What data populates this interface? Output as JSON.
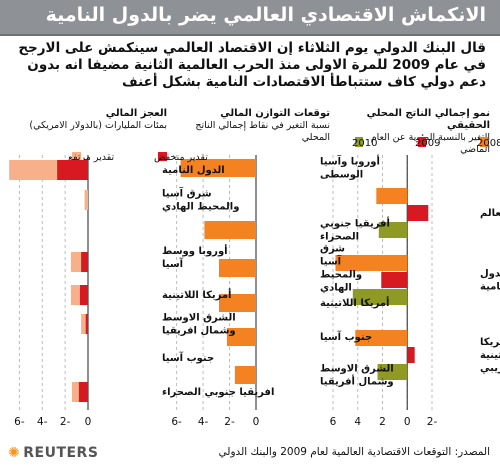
{
  "header": {
    "title": "الانكماش الاقتصادي العالمي يضر بالدول النامية",
    "intro": "قال البنك الدولي يوم الثلاثاء إن الاقتصاد العالمي سينكمش على الارجح في عام 2009 للمرة الاولى منذ الحرب العالمية الثانية مضيفا انه بدون دعم دولي كاف ستتباطأ الاقتصادات النامية بشكل أعنف"
  },
  "colors": {
    "orange": "#f58220",
    "red": "#d71921",
    "olive": "#8f9a24",
    "peach": "#f7b08a",
    "grid": "#bcbcbc",
    "axis": "#444444"
  },
  "panels": {
    "gdp": {
      "title": "نمو إجمالي الناتج المحلي الحقيقي",
      "subtitle": "التغير بالنسبة المئوية عن العام الماضي",
      "legend": [
        "2010",
        "2009",
        "2008"
      ]
    },
    "balance": {
      "title": "توقعات التوازن المالي",
      "subtitle": "نسبة التغير في نقاط إجمالي الناتج المحلي"
    },
    "deficit": {
      "title": "العجز المالي",
      "subtitle": "بمئات المليارات (بالدولار الامريكي)",
      "legend": [
        "تقدير مرتفع",
        "تقدير منخفض"
      ]
    }
  },
  "chart_data": [
    {
      "type": "bar",
      "title": "نمو إجمالي الناتج المحلي الحقيقي",
      "subtitle": "التغير بالنسبة المئوية عن العام الماضي",
      "categories": [
        "العالم",
        "الدول النامية",
        "أمريكا اللاتينية والكاريبي"
      ],
      "series": [
        {
          "name": "2008",
          "color": "#f58220",
          "values": [
            2.5,
            5.8,
            4.2
          ]
        },
        {
          "name": "2009",
          "color": "#d71921",
          "values": [
            -1.7,
            2.1,
            -0.6
          ]
        },
        {
          "name": "2010",
          "color": "#8f9a24",
          "values": [
            2.3,
            4.4,
            2.4
          ]
        }
      ],
      "x_ticks": [
        "6",
        "4",
        "2",
        "0",
        "-2"
      ],
      "xlim": [
        -2,
        6
      ]
    },
    {
      "type": "bar",
      "title": "توقعات التوازن المالي",
      "subtitle": "نسبة التغير في نقاط إجمالي الناتج المحلي",
      "categories": [
        "أوروبا وآسيا الوسطى",
        "أفريقيا جنوبي الصحراء",
        "شرق آسيا والمحيط الهادي",
        "أمريكا اللاتينية",
        "جنوب آسيا",
        "الشرق الاوسط وشمال أفريقيا"
      ],
      "values": [
        -5.7,
        -3.9,
        -2.8,
        -2.8,
        -2.2,
        -1.6
      ],
      "color": "#f58220",
      "x_ticks": [
        "-6",
        "-4",
        "-2",
        "0"
      ],
      "xlim": [
        -6.5,
        0
      ]
    },
    {
      "type": "bar",
      "title": "العجز المالي",
      "subtitle": "بمئات المليارات (بالدولار الامريكي)",
      "categories": [
        "الدول النامية",
        "شرق آسيا والمحيط الهادي",
        "أوروبا ووسط آسيا",
        "أمريكا اللاتينية",
        "الشرق الاوسط وشمال افريقيا",
        "جنوب آسيا",
        "افريقيا جنوبي الصحراء"
      ],
      "series": [
        {
          "name": "تقدير مرتفع",
          "color": "#f7b08a",
          "values": [
            -6.9,
            -0.3,
            -1.5,
            -1.5,
            -0.6,
            0,
            -1.4
          ]
        },
        {
          "name": "تقدير منخفض",
          "color": "#d71921",
          "values": [
            -2.7,
            0,
            -0.6,
            -0.7,
            -0.2,
            0,
            -0.8
          ]
        }
      ],
      "x_ticks": [
        "-6",
        "-4",
        "-2",
        "0"
      ],
      "xlim": [
        -7,
        0
      ]
    }
  ],
  "footer": {
    "logo": "REUTERS",
    "source": "المصدر: التوقعات الاقتصادية العالمية لعام 2009 والبنك الدولي"
  }
}
